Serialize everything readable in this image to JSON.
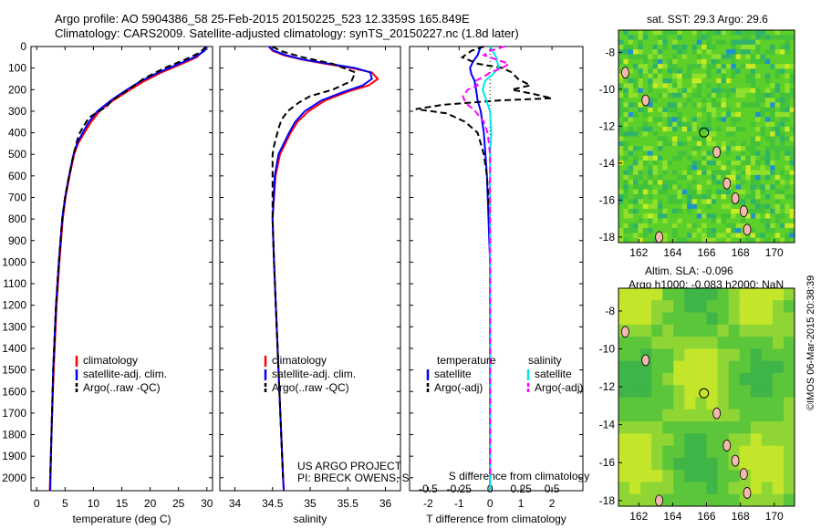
{
  "header": {
    "line1": "Argo profile: AO 5904386_58 25-Feb-2015 20150225_523 12.3359S 165.849E",
    "line2": "Climatology: CARS2009. Satellite-adjusted climatology: synTS_20150227.nc (1.8d later)"
  },
  "colors": {
    "clim": "#ff0000",
    "sat": "#0000ff",
    "argo": "#000000",
    "sal_sat": "#00e5ee",
    "sal_argo": "#ff00ff"
  },
  "depth_axis": {
    "ticks": [
      0,
      100,
      200,
      300,
      400,
      500,
      600,
      700,
      800,
      900,
      1000,
      1100,
      1200,
      1300,
      1400,
      1500,
      1600,
      1700,
      1800,
      1900,
      2000
    ],
    "range": [
      0,
      2060
    ]
  },
  "chart_data": [
    {
      "type": "line",
      "name": "temperature",
      "xlabel": "temperature (deg C)",
      "xlim": [
        -1,
        31
      ],
      "xticks": [
        0,
        5,
        10,
        15,
        20,
        25,
        30
      ],
      "legend": [
        "climatology",
        "satellite-adj. clim.",
        "Argo(..raw -QC)"
      ],
      "series": [
        {
          "name": "climatology",
          "depth": [
            0,
            20,
            50,
            80,
            120,
            160,
            200,
            250,
            300,
            350,
            400,
            450,
            500,
            600,
            700,
            800,
            1000,
            1200,
            1500,
            1800,
            2060
          ],
          "values": [
            29.7,
            29.4,
            28.2,
            25.6,
            22.0,
            19.0,
            16.5,
            13.5,
            11.1,
            9.6,
            8.4,
            7.3,
            6.6,
            5.8,
            5.1,
            4.6,
            4.0,
            3.5,
            3.0,
            2.6,
            2.3
          ]
        },
        {
          "name": "satellite-adj. clim.",
          "depth": [
            0,
            20,
            50,
            80,
            120,
            160,
            200,
            250,
            300,
            350,
            400,
            450,
            500,
            600,
            700,
            800,
            1000,
            1200,
            1500,
            1800,
            2060
          ],
          "values": [
            29.9,
            29.6,
            27.8,
            25.1,
            21.5,
            18.4,
            15.9,
            13.1,
            10.7,
            9.2,
            8.1,
            7.1,
            6.5,
            5.7,
            5.0,
            4.5,
            3.9,
            3.4,
            2.9,
            2.6,
            2.4
          ]
        },
        {
          "name": "Argo",
          "depth": [
            0,
            10,
            30,
            60,
            100,
            150,
            200,
            250,
            280,
            300,
            330,
            360,
            400,
            430,
            470,
            500,
            600,
            700,
            800,
            1000,
            1200,
            1500,
            1800,
            2000
          ],
          "values": [
            29.8,
            29.5,
            28.6,
            26.2,
            22.5,
            18.8,
            16.2,
            13.2,
            12.3,
            11.0,
            9.2,
            8.5,
            7.6,
            7.2,
            6.8,
            6.5,
            5.7,
            5.0,
            4.5,
            3.9,
            3.4,
            2.9,
            2.6,
            2.4
          ]
        }
      ]
    },
    {
      "type": "line",
      "name": "salinity",
      "xlabel": "salinity",
      "xlim": [
        33.8,
        36.2
      ],
      "xticks": [
        34,
        34.5,
        35,
        35.5,
        36
      ],
      "legend": [
        "climatology",
        "satellite-adj. clim.",
        "Argo(..raw -QC)"
      ],
      "annotations": [
        "US ARGO PROJECT",
        "PI: BRECK OWENS, STEVE JAYNE, P.E. ROBBINS"
      ],
      "series": [
        {
          "name": "climatology",
          "depth": [
            0,
            20,
            40,
            60,
            80,
            100,
            120,
            150,
            180,
            210,
            250,
            300,
            350,
            400,
            500,
            600,
            800,
            1000,
            1500,
            2000,
            2060
          ],
          "values": [
            34.45,
            34.5,
            34.65,
            34.88,
            35.2,
            35.55,
            35.82,
            35.9,
            35.78,
            35.5,
            35.2,
            34.98,
            34.83,
            34.74,
            34.6,
            34.54,
            34.5,
            34.52,
            34.58,
            34.64,
            34.65
          ]
        },
        {
          "name": "satellite-adj. clim.",
          "depth": [
            0,
            20,
            40,
            60,
            80,
            100,
            120,
            150,
            180,
            210,
            250,
            300,
            350,
            400,
            500,
            600,
            800,
            1000,
            1500,
            2000,
            2060
          ],
          "values": [
            34.45,
            34.52,
            34.68,
            34.9,
            35.25,
            35.6,
            35.8,
            35.82,
            35.7,
            35.45,
            35.15,
            34.93,
            34.8,
            34.72,
            34.58,
            34.53,
            34.5,
            34.52,
            34.58,
            34.64,
            34.65
          ]
        },
        {
          "name": "Argo",
          "depth": [
            0,
            20,
            50,
            80,
            120,
            160,
            200,
            230,
            260,
            300,
            340,
            380,
            420,
            460,
            500,
            600,
            700,
            800,
            1000,
            1500,
            2000
          ],
          "values": [
            34.5,
            34.6,
            34.9,
            35.3,
            35.6,
            35.55,
            35.3,
            35.0,
            34.85,
            34.7,
            34.62,
            34.58,
            34.55,
            34.52,
            34.5,
            34.5,
            34.5,
            34.5,
            34.52,
            34.58,
            34.64
          ]
        }
      ]
    },
    {
      "type": "line",
      "name": "differences",
      "xlabel": "T difference from climatology",
      "xlabel2": "S difference from climatology",
      "xlim": [
        -2.6,
        3.0
      ],
      "xticks": [
        -2,
        -1,
        0,
        1,
        2
      ],
      "xticks_s": [
        -0.5,
        -0.25,
        0,
        0.25,
        0.5
      ],
      "legend_headers": [
        "temperature",
        "salinity"
      ],
      "legend": [
        "satellite",
        "Argo(-adj)",
        "satellite",
        "Argo(-adj)"
      ],
      "series": [
        {
          "name": "T satellite",
          "depth": [
            0,
            40,
            70,
            100,
            130,
            160,
            200,
            250,
            300,
            400,
            500,
            600,
            800,
            1000,
            1500,
            2060
          ],
          "values": [
            -0.3,
            -0.4,
            -0.55,
            -0.65,
            -0.6,
            -0.5,
            -0.45,
            -0.4,
            -0.3,
            -0.2,
            -0.15,
            -0.1,
            -0.05,
            0,
            0,
            0
          ]
        },
        {
          "name": "T Argo",
          "depth": [
            0,
            20,
            50,
            80,
            100,
            120,
            150,
            180,
            200,
            220,
            240,
            250,
            270,
            290,
            310,
            350,
            400,
            500,
            600,
            700,
            800,
            1000,
            1500,
            2000
          ],
          "values": [
            -0.2,
            -0.6,
            -0.9,
            -0.4,
            0.4,
            0.7,
            0.9,
            1.3,
            0.7,
            1.4,
            2.0,
            0.3,
            -1.5,
            -2.4,
            -1.4,
            -0.8,
            -0.4,
            -0.2,
            -0.1,
            -0.05,
            0,
            0,
            0,
            0
          ]
        },
        {
          "name": "S satellite",
          "depth": [
            0,
            50,
            100,
            130,
            160,
            200,
            250,
            300,
            400,
            500,
            600,
            800,
            1000,
            1500,
            2060
          ],
          "values": [
            0.0,
            0.05,
            0.07,
            0.02,
            -0.04,
            -0.06,
            -0.03,
            0,
            0.01,
            0,
            0,
            0,
            0,
            0,
            0
          ]
        },
        {
          "name": "S Argo",
          "depth": [
            0,
            20,
            40,
            60,
            80,
            100,
            120,
            140,
            160,
            180,
            200,
            230,
            260,
            300,
            350,
            400,
            500,
            600,
            800,
            1000,
            1500,
            2000
          ],
          "values": [
            0.12,
            0.0,
            -0.05,
            0.05,
            0.15,
            0.1,
            0.0,
            -0.05,
            -0.12,
            -0.1,
            -0.18,
            -0.22,
            -0.2,
            -0.12,
            -0.05,
            -0.02,
            0,
            0,
            0,
            0,
            0,
            0
          ]
        }
      ]
    }
  ],
  "maps": [
    {
      "title": "sat. SST: 29.3 Argo: 29.6",
      "xticks": [
        162,
        164,
        166,
        168,
        170
      ],
      "yticks": [
        -8,
        -10,
        -12,
        -14,
        -16,
        -18
      ],
      "xlim": [
        160.8,
        171.2
      ],
      "ylim": [
        -18.3,
        -6.8
      ],
      "marker": {
        "lon": 165.85,
        "lat": -12.34
      }
    },
    {
      "title": "Altim. SLA: -0.096",
      "title2": "Argo h1000: -0.083 h2000: NaN",
      "xticks": [
        162,
        164,
        166,
        168,
        170
      ],
      "yticks": [
        -8,
        -10,
        -12,
        -14,
        -16,
        -18
      ],
      "xlim": [
        160.8,
        171.2
      ],
      "ylim": [
        -18.3,
        -6.8
      ],
      "marker": {
        "lon": 165.85,
        "lat": -12.34
      }
    }
  ],
  "credit": "©IMOS 06-Mar-2015 20:38:39"
}
